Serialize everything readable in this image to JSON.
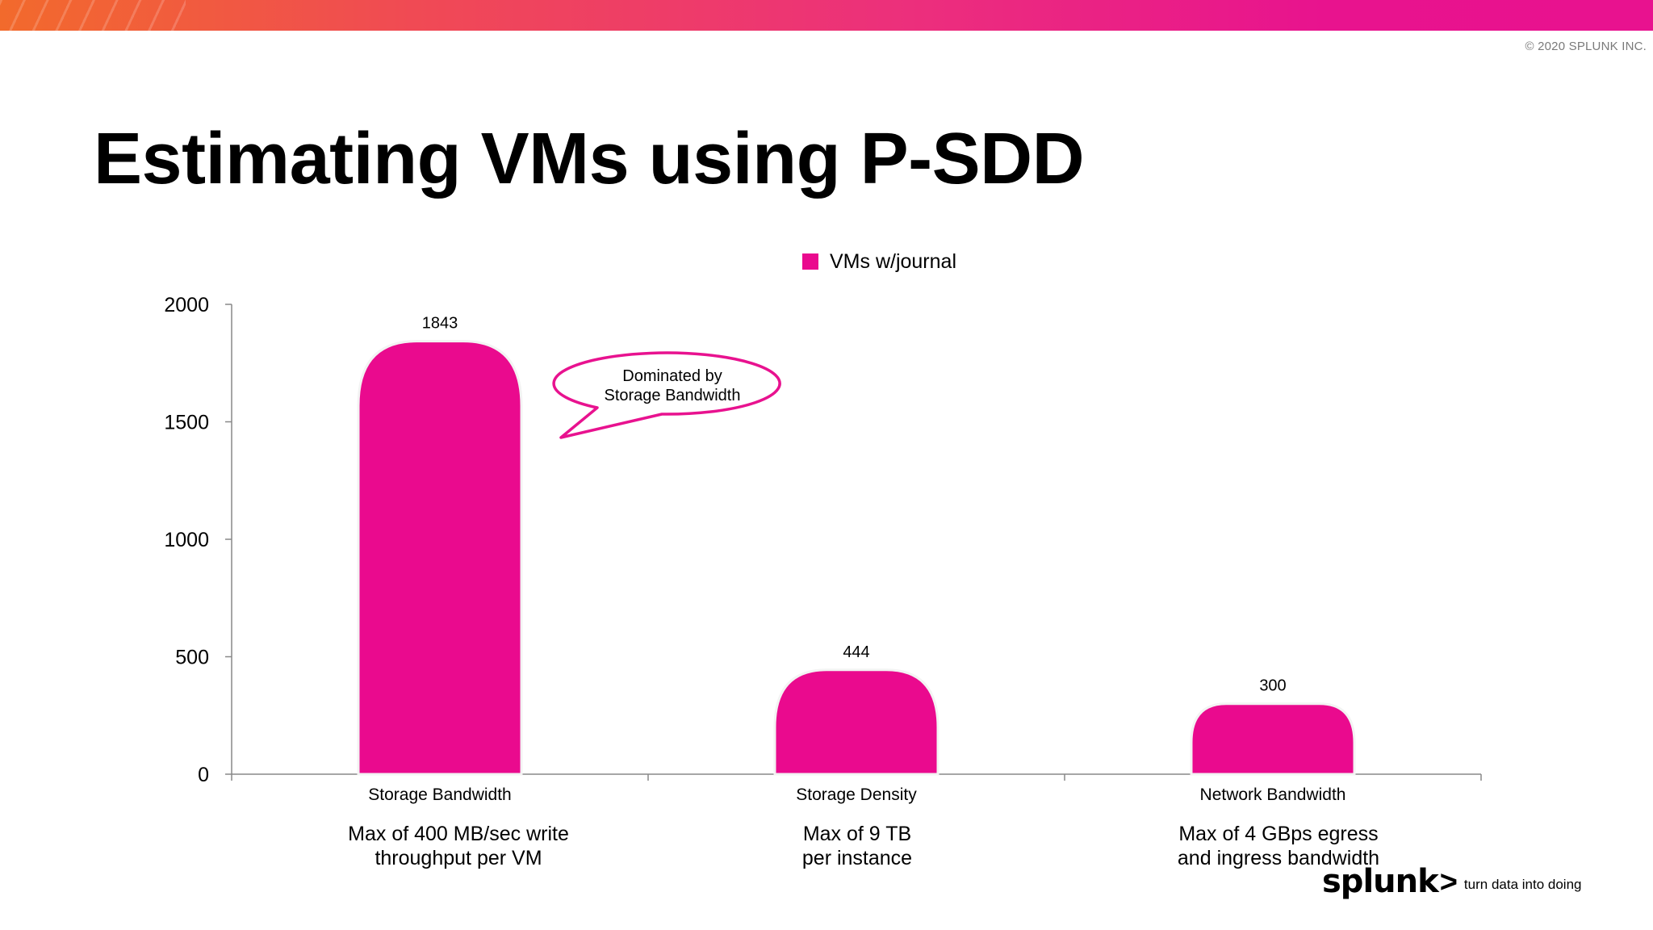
{
  "header": {
    "copyright": "© 2020 SPLUNK INC.",
    "accent_colors": [
      "#f26a2c",
      "#ec2f7c",
      "#e8128f"
    ]
  },
  "slide": {
    "title": "Estimating VMs using P-SDD"
  },
  "chart_data": {
    "type": "bar",
    "title": "",
    "xlabel": "",
    "ylabel": "",
    "categories": [
      "Storage Bandwidth",
      "Storage Density",
      "Network Bandwidth"
    ],
    "series": [
      {
        "name": "VMs w/journal",
        "values": [
          1843,
          444,
          300
        ],
        "color": "#ea0a8e"
      }
    ],
    "data_labels": [
      "1843",
      "444",
      "300"
    ],
    "ylim": [
      0,
      2000
    ],
    "yticks": [
      0,
      500,
      1000,
      1500,
      2000
    ],
    "ytick_labels": [
      "0",
      "500",
      "1000",
      "1500",
      "2000"
    ],
    "grid": false,
    "legend_position": "top-center",
    "annotation": {
      "lines": [
        "Dominated by",
        "Storage Bandwidth"
      ],
      "points_to": "Storage Bandwidth",
      "color": "#e8128f"
    }
  },
  "descriptions": [
    {
      "lines": [
        "Max of 400 MB/sec write",
        "throughput per VM"
      ]
    },
    {
      "lines": [
        "Max of 9 TB",
        "per instance"
      ]
    },
    {
      "lines": [
        "Max of 4 GBps egress",
        "and ingress bandwidth"
      ]
    }
  ],
  "brand": {
    "logo": "splunk",
    "chevron": ">",
    "tagline": "turn data into doing",
    "trademark": "®"
  }
}
